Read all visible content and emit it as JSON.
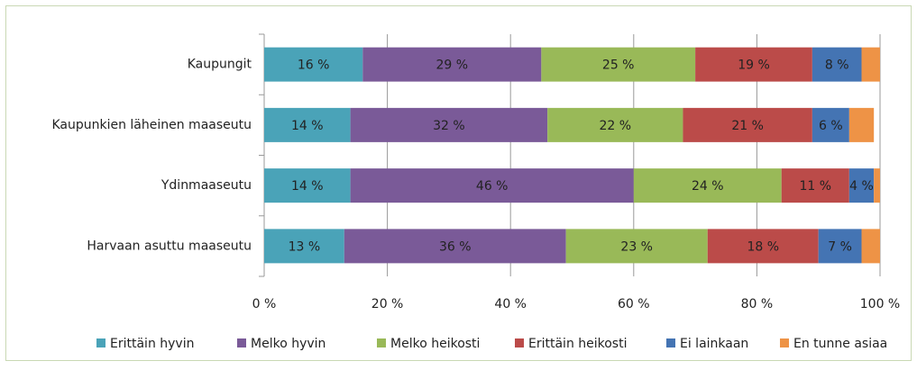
{
  "chart_data": {
    "type": "stacked-bar-horizontal",
    "categories": [
      "Kaupungit",
      "Kaupunkien läheinen maaseutu",
      "Ydinmaaseutu",
      "Harvaan asuttu maaseutu"
    ],
    "series": [
      {
        "name": "Erittäin hyvin",
        "color": "#4aa3b8",
        "values": [
          16,
          14,
          14,
          13
        ],
        "value_labels": [
          "16 %",
          "14 %",
          "14 %",
          "13 %"
        ]
      },
      {
        "name": "Melko hyvin",
        "color": "#7a5a98",
        "values": [
          29,
          32,
          46,
          36
        ],
        "value_labels": [
          "29 %",
          "32 %",
          "46 %",
          "36 %"
        ]
      },
      {
        "name": "Melko heikosti",
        "color": "#99b958",
        "values": [
          25,
          22,
          24,
          23
        ],
        "value_labels": [
          "25 %",
          "22 %",
          "24 %",
          "23 %"
        ]
      },
      {
        "name": "Erittäin heikosti",
        "color": "#bb4b49",
        "values": [
          19,
          21,
          11,
          18
        ],
        "value_labels": [
          "19 %",
          "21 %",
          "11 %",
          "18 %"
        ]
      },
      {
        "name": "Ei lainkaan",
        "color": "#4474b3",
        "values": [
          8,
          6,
          4,
          7
        ],
        "value_labels": [
          "8 %",
          "6 %",
          "4 %",
          "7 %"
        ]
      },
      {
        "name": "En tunne asiaa",
        "color": "#ee9346",
        "values": [
          3,
          4,
          1,
          3
        ]
      }
    ],
    "xlim": [
      0,
      100
    ],
    "xticks": [
      {
        "value": 0,
        "label": "0 %"
      },
      {
        "value": 20,
        "label": "20 %"
      },
      {
        "value": 40,
        "label": "40 %"
      },
      {
        "value": 60,
        "label": "60 %"
      },
      {
        "value": 80,
        "label": "80 %"
      },
      {
        "value": 100,
        "label": "100 %"
      }
    ],
    "grid": true,
    "legend": "bottom"
  }
}
